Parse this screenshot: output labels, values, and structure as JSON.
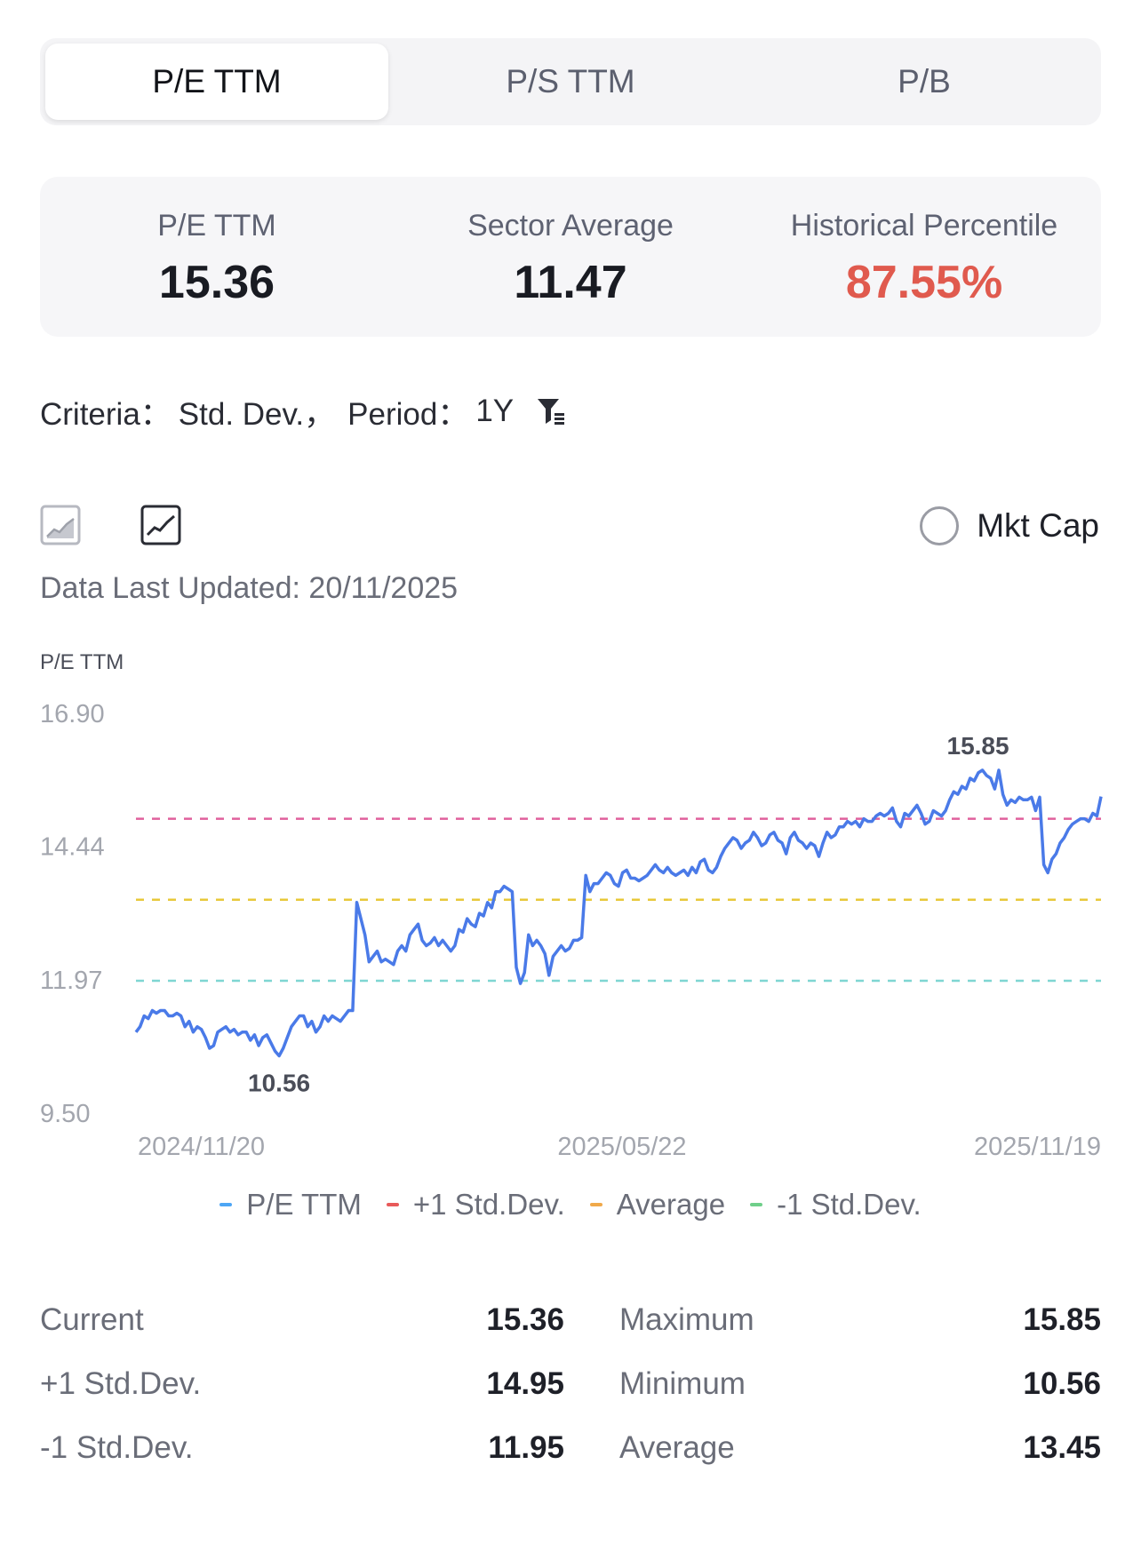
{
  "tabs": [
    {
      "label": "P/E TTM",
      "active": true
    },
    {
      "label": "P/S TTM",
      "active": false
    },
    {
      "label": "P/B",
      "active": false
    }
  ],
  "summary": {
    "pe": {
      "label": "P/E TTM",
      "value": "15.36"
    },
    "sector": {
      "label": "Sector Average",
      "value": "11.47"
    },
    "percentile": {
      "label": "Historical Percentile",
      "value": "87.55%"
    }
  },
  "criteria": {
    "criteria_label": "Criteria：",
    "criteria_value": "Std. Dev.，",
    "period_label": "Period：",
    "period_value": "1Y",
    "filter_icon": "filter-icon"
  },
  "chart_toggle": {
    "area_icon": "area-chart-icon",
    "line_icon": "line-chart-icon"
  },
  "mkt_cap": {
    "label": "Mkt Cap"
  },
  "updated": "Data Last Updated: 20/11/2025",
  "colors": {
    "line": "#4a7ae8",
    "plus_sd": "#e0609c",
    "average": "#e8c83a",
    "minus_sd": "#7fd6d2",
    "legend_pe": "#4da6f5",
    "legend_plus": "#e85a5a",
    "legend_avg": "#f0a94a",
    "legend_minus": "#6fcf8a",
    "highlight": "#e05a4e"
  },
  "chart_data": {
    "type": "line",
    "ylabel": "P/E TTM",
    "ylim": [
      9.5,
      16.9
    ],
    "yticks": [
      "16.90",
      "14.44",
      "11.97",
      "9.50"
    ],
    "ytick_values": [
      16.9,
      14.44,
      11.97,
      9.5
    ],
    "xticks": [
      "2024/11/20",
      "2025/05/22",
      "2025/11/19"
    ],
    "x_start": "2024/11/20",
    "x_end": "2025/11/19",
    "reference_lines": [
      {
        "name": "+1 Std.Dev.",
        "value": 14.95
      },
      {
        "name": "Average",
        "value": 13.45
      },
      {
        "name": "-1 Std.Dev.",
        "value": 11.95
      }
    ],
    "annotations": [
      {
        "text": "15.85",
        "value": 15.85,
        "x_index": 160
      },
      {
        "text": "10.56",
        "value": 10.56,
        "x_index": 35
      }
    ],
    "series": [
      {
        "name": "P/E TTM",
        "values": [
          11.0,
          11.1,
          11.3,
          11.25,
          11.4,
          11.35,
          11.4,
          11.4,
          11.3,
          11.3,
          11.35,
          11.3,
          11.1,
          11.2,
          11.0,
          11.1,
          11.05,
          10.9,
          10.7,
          10.75,
          11.0,
          11.05,
          11.1,
          11.0,
          11.05,
          10.95,
          11.0,
          11.0,
          10.85,
          10.95,
          10.75,
          10.9,
          10.95,
          10.8,
          10.65,
          10.56,
          10.7,
          10.9,
          11.1,
          11.2,
          11.3,
          11.3,
          11.1,
          11.2,
          11.0,
          11.1,
          11.3,
          11.2,
          11.3,
          11.25,
          11.2,
          11.3,
          11.4,
          11.4,
          13.4,
          13.1,
          12.8,
          12.3,
          12.4,
          12.5,
          12.3,
          12.35,
          12.3,
          12.25,
          12.5,
          12.6,
          12.5,
          12.8,
          12.9,
          13.0,
          12.7,
          12.6,
          12.65,
          12.75,
          12.6,
          12.7,
          12.6,
          12.5,
          12.6,
          12.9,
          12.85,
          13.1,
          13.0,
          12.95,
          13.2,
          13.15,
          13.4,
          13.3,
          13.6,
          13.6,
          13.7,
          13.65,
          13.6,
          12.2,
          11.9,
          12.1,
          12.8,
          12.6,
          12.7,
          12.6,
          12.45,
          12.05,
          12.4,
          12.5,
          12.6,
          12.5,
          12.55,
          12.7,
          12.7,
          12.75,
          13.9,
          13.6,
          13.75,
          13.75,
          13.85,
          13.95,
          13.9,
          13.75,
          13.7,
          13.95,
          14.0,
          13.85,
          13.85,
          13.8,
          13.85,
          13.9,
          14.0,
          14.1,
          14.0,
          13.95,
          14.05,
          13.95,
          13.9,
          13.95,
          14.0,
          13.9,
          14.05,
          13.95,
          14.15,
          14.2,
          14.0,
          13.95,
          14.05,
          14.25,
          14.4,
          14.5,
          14.6,
          14.55,
          14.4,
          14.5
        ]
      },
      {
        "name": "+1 Std.Dev.",
        "values": []
      },
      {
        "name": "Average",
        "values": []
      },
      {
        "name": "-1 Std.Dev.",
        "values": []
      }
    ],
    "series_tail": [
      14.55,
      14.7,
      14.6,
      14.45,
      14.5,
      14.65,
      14.7,
      14.55,
      14.5,
      14.3,
      14.6,
      14.7,
      14.55,
      14.5,
      14.4,
      14.5,
      14.45,
      14.25,
      14.5,
      14.7,
      14.6,
      14.65,
      14.8,
      14.8,
      14.9,
      14.85,
      14.9,
      14.8,
      14.95,
      14.9,
      14.9,
      15.0,
      15.05,
      15.0,
      15.05,
      15.15,
      14.9,
      14.8,
      15.05,
      15.0,
      15.1,
      15.2,
      15.05,
      14.85,
      14.9,
      15.1,
      15.05,
      15.0,
      15.1,
      15.3,
      15.45,
      15.4,
      15.55,
      15.5,
      15.7,
      15.65,
      15.8,
      15.85,
      15.75,
      15.7,
      15.5,
      15.85,
      15.4,
      15.2,
      15.3,
      15.25,
      15.35,
      15.3,
      15.3,
      15.35,
      15.1,
      15.35,
      14.1,
      13.95,
      14.2,
      14.3,
      14.5,
      14.6,
      14.75,
      14.85,
      14.9,
      14.95,
      14.95,
      14.9,
      15.05,
      15.0,
      15.36
    ],
    "legend": [
      "P/E TTM",
      "+1 Std.Dev.",
      "Average",
      "-1 Std.Dev."
    ],
    "legend_placement": "bottom",
    "grid": false
  },
  "stats": [
    {
      "left_label": "Current",
      "left_value": "15.36",
      "right_label": "Maximum",
      "right_value": "15.85"
    },
    {
      "left_label": "+1 Std.Dev.",
      "left_value": "14.95",
      "right_label": "Minimum",
      "right_value": "10.56"
    },
    {
      "left_label": "-1 Std.Dev.",
      "left_value": "11.95",
      "right_label": "Average",
      "right_value": "13.45"
    }
  ]
}
